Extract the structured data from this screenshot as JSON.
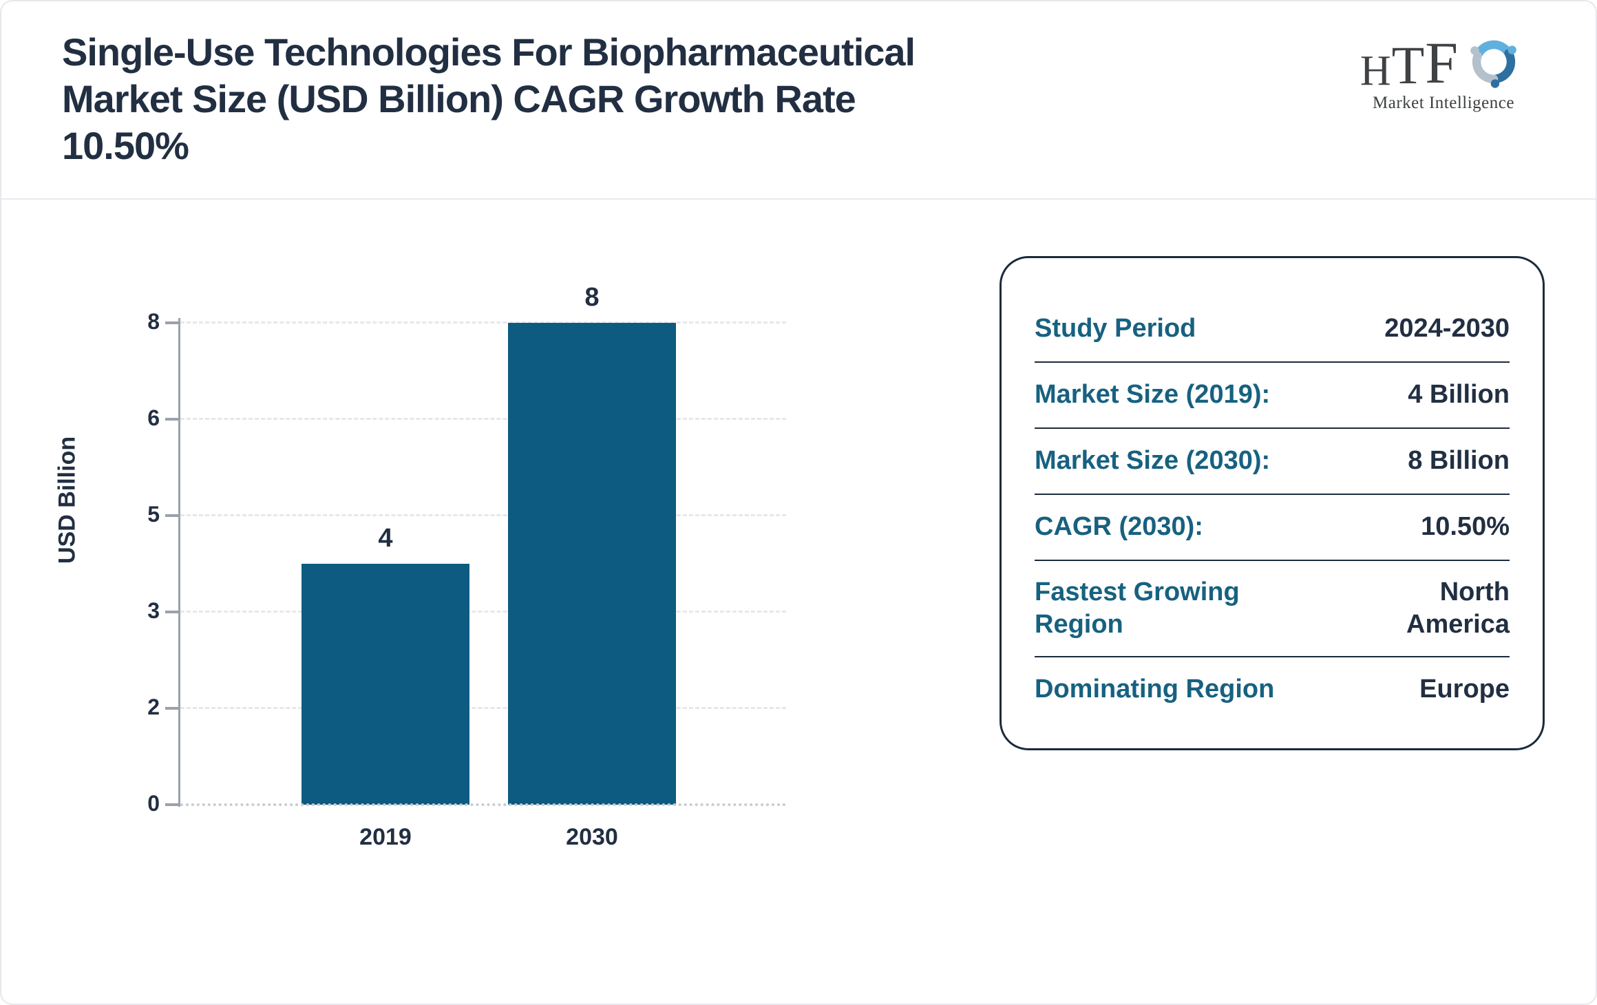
{
  "header": {
    "title_lines": [
      "Single-Use Technologies For Biopharmaceutical",
      "Market Size (USD Billion) CAGR Growth Rate",
      "10.50%"
    ]
  },
  "logo": {
    "letter_h": "H",
    "letter_t": "T",
    "letter_f": "F",
    "subtext": "Market Intelligence",
    "icon": "htf-swirl-logo-icon",
    "colors": {
      "light_blue": "#60b0de",
      "dark_blue": "#2e6fa0",
      "gray_blue": "#b3c1cc"
    }
  },
  "chart_data": {
    "type": "bar",
    "title": "",
    "categories": [
      "2019",
      "2030"
    ],
    "values": [
      4,
      8
    ],
    "data_labels": [
      "4",
      "8"
    ],
    "xlabel": "",
    "ylabel": "USD Billion",
    "ylim": [
      0,
      8
    ],
    "yticks": [
      0,
      2,
      3,
      5,
      6,
      8
    ],
    "grid": "horizontal-dashed",
    "legend": "none",
    "bar_color": "#0d5b80"
  },
  "panel": {
    "rows": [
      {
        "label": "Study Period",
        "value": "2024-2030"
      },
      {
        "label": "Market Size (2019):",
        "value": "4 Billion"
      },
      {
        "label": "Market Size (2030):",
        "value": "8 Billion"
      },
      {
        "label": "CAGR (2030):",
        "value": "10.50%"
      },
      {
        "label": "Fastest Growing Region",
        "value": "North America"
      },
      {
        "label": "Dominating Region",
        "value": "Europe"
      }
    ]
  },
  "colors": {
    "bar": "#0d5b80",
    "label_teal": "#176180",
    "text_dark": "#222f42",
    "axis_gray": "#9aa1ac",
    "gridline": "#e6e7e9",
    "outer_border": "#e6e8ec",
    "panel_border": "#1c2b3a"
  }
}
